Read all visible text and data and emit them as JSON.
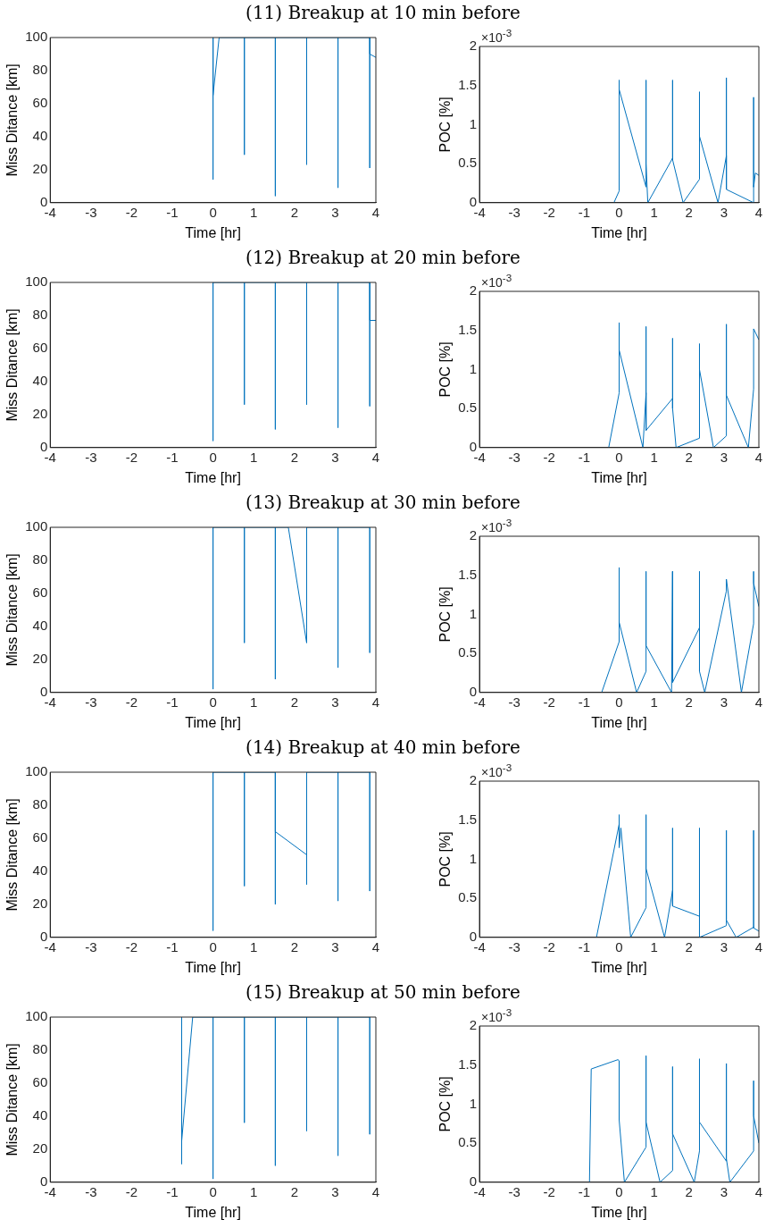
{
  "chart_data": [
    {
      "type": "line",
      "title": "(11) Breakup at 10 min before",
      "xlabel": "Time [hr]",
      "ylabel": "Miss Ditance [km]",
      "xlim": [
        -4,
        4
      ],
      "xticks": [
        -4,
        -3,
        -2,
        -1,
        0,
        1,
        2,
        3,
        4
      ],
      "ylim": [
        0,
        100
      ],
      "yticks": [
        0,
        20,
        40,
        60,
        80,
        100
      ],
      "series": [
        {
          "color": "#0072bd",
          "x": [
            0,
            0,
            0,
            0.15,
            0.77,
            0.77,
            0.77,
            1.53,
            1.53,
            1.53,
            2.3,
            2.3,
            2.3,
            3.07,
            3.07,
            3.07,
            3.85,
            3.85,
            3.85,
            4
          ],
          "values": [
            100,
            14,
            65,
            100,
            100,
            29,
            100,
            100,
            4,
            100,
            100,
            23,
            100,
            100,
            9,
            100,
            100,
            21,
            90,
            88
          ]
        }
      ]
    },
    {
      "type": "line",
      "xlabel": "Time [hr]",
      "ylabel": "POC [%]",
      "annotations": [
        "×10$^{-3}$"
      ],
      "xlim": [
        -4,
        4
      ],
      "xticks": [
        -4,
        -3,
        -2,
        -1,
        0,
        1,
        2,
        3,
        4
      ],
      "ylim": [
        0,
        2
      ],
      "yticks": [
        0,
        0.5,
        1,
        1.5,
        2
      ],
      "series": [
        {
          "color": "#0072bd",
          "x": [
            -0.15,
            0,
            0,
            0,
            0.77,
            0.77,
            0.77,
            0.82,
            1.53,
            1.53,
            1.53,
            1.83,
            2.3,
            2.3,
            2.3,
            2.83,
            3.07,
            3.07,
            3.07,
            3.85,
            3.85,
            3.85,
            3.9,
            4
          ],
          "values": [
            0,
            0.15,
            1.57,
            1.45,
            0.2,
            1.57,
            0.5,
            0,
            0.57,
            1.57,
            0.55,
            0,
            0.3,
            1.42,
            0.85,
            0,
            0.6,
            1.6,
            0.17,
            0,
            1.35,
            0.2,
            0.38,
            0.35
          ]
        }
      ]
    },
    {
      "type": "line",
      "title": "(12) Breakup at 20 min before",
      "xlabel": "Time [hr]",
      "ylabel": "Miss Ditance [km]",
      "xlim": [
        -4,
        4
      ],
      "xticks": [
        -4,
        -3,
        -2,
        -1,
        0,
        1,
        2,
        3,
        4
      ],
      "ylim": [
        0,
        100
      ],
      "yticks": [
        0,
        20,
        40,
        60,
        80,
        100
      ],
      "series": [
        {
          "color": "#0072bd",
          "x": [
            0,
            0,
            0,
            0.77,
            0.77,
            0.77,
            1.53,
            1.53,
            1.53,
            2.3,
            2.3,
            2.3,
            3.07,
            3.07,
            3.07,
            3.85,
            3.85,
            3.85,
            4
          ],
          "values": [
            100,
            4,
            100,
            100,
            26,
            100,
            100,
            11,
            100,
            100,
            26,
            100,
            100,
            12,
            100,
            100,
            25,
            77,
            77
          ]
        }
      ]
    },
    {
      "type": "line",
      "xlabel": "Time [hr]",
      "ylabel": "POC [%]",
      "annotations": [
        "×10$^{-3}$"
      ],
      "xlim": [
        -4,
        4
      ],
      "xticks": [
        -4,
        -3,
        -2,
        -1,
        0,
        1,
        2,
        3,
        4
      ],
      "ylim": [
        0,
        2
      ],
      "yticks": [
        0,
        0.5,
        1,
        1.5,
        2
      ],
      "series": [
        {
          "color": "#0072bd",
          "x": [
            -0.3,
            0,
            0,
            0,
            0.68,
            0.77,
            0.77,
            0.77,
            1.53,
            1.53,
            1.53,
            1.63,
            2.3,
            2.3,
            2.3,
            2.7,
            3.07,
            3.07,
            3.07,
            3.7,
            3.85,
            3.85,
            4
          ],
          "values": [
            0,
            0.7,
            1.6,
            1.25,
            0,
            0.7,
            1.55,
            0.22,
            0.63,
            1.4,
            0.5,
            0,
            0.12,
            1.33,
            1.0,
            0,
            0.15,
            1.58,
            0.67,
            0,
            0.75,
            1.52,
            1.38
          ]
        }
      ]
    },
    {
      "type": "line",
      "title": "(13) Breakup at 30 min before",
      "xlabel": "Time [hr]",
      "ylabel": "Miss Ditance [km]",
      "xlim": [
        -4,
        4
      ],
      "xticks": [
        -4,
        -3,
        -2,
        -1,
        0,
        1,
        2,
        3,
        4
      ],
      "ylim": [
        0,
        100
      ],
      "yticks": [
        0,
        20,
        40,
        60,
        80,
        100
      ],
      "series": [
        {
          "color": "#0072bd",
          "x": [
            0,
            0,
            0,
            0.77,
            0.77,
            0.77,
            1.53,
            1.53,
            1.53,
            1.85,
            2.3,
            2.3,
            3.07,
            3.07,
            3.07,
            3.85,
            3.85,
            3.85
          ],
          "values": [
            100,
            2,
            100,
            100,
            30,
            100,
            100,
            8,
            100,
            100,
            30,
            100,
            100,
            15,
            100,
            100,
            24,
            100
          ]
        }
      ]
    },
    {
      "type": "line",
      "xlabel": "Time [hr]",
      "ylabel": "POC [%]",
      "annotations": [
        "×10$^{-3}$"
      ],
      "xlim": [
        -4,
        4
      ],
      "xticks": [
        -4,
        -3,
        -2,
        -1,
        0,
        1,
        2,
        3,
        4
      ],
      "ylim": [
        0,
        2
      ],
      "yticks": [
        0,
        0.5,
        1,
        1.5,
        2
      ],
      "series": [
        {
          "color": "#0072bd",
          "x": [
            -0.5,
            0,
            0,
            0,
            0.5,
            0.77,
            0.77,
            0.77,
            1.5,
            1.53,
            1.53,
            2.3,
            2.3,
            2.3,
            2.45,
            3.07,
            3.07,
            3.5,
            3.85,
            3.85,
            3.85,
            4
          ],
          "values": [
            0,
            0.65,
            1.6,
            0.9,
            0,
            0.27,
            1.55,
            0.6,
            0,
            1.55,
            0.13,
            0.83,
            1.55,
            0.27,
            0,
            1.3,
            1.45,
            0,
            0.88,
            1.55,
            1.4,
            1.1
          ]
        }
      ]
    },
    {
      "type": "line",
      "title": "(14) Breakup at 40 min before",
      "xlabel": "Time [hr]",
      "ylabel": "Miss Ditance [km]",
      "xlim": [
        -4,
        4
      ],
      "xticks": [
        -4,
        -3,
        -2,
        -1,
        0,
        1,
        2,
        3,
        4
      ],
      "ylim": [
        0,
        100
      ],
      "yticks": [
        0,
        20,
        40,
        60,
        80,
        100
      ],
      "series": [
        {
          "color": "#0072bd",
          "x": [
            0,
            0,
            0,
            0.77,
            0.77,
            0.77,
            1.53,
            1.53,
            1.53,
            2.3,
            2.3,
            2.3,
            3.07,
            3.07,
            3.07,
            3.85,
            3.85,
            3.85
          ],
          "values": [
            100,
            4,
            100,
            100,
            31,
            100,
            100,
            20,
            64,
            50,
            32,
            100,
            100,
            22,
            100,
            100,
            28,
            100
          ]
        }
      ]
    },
    {
      "type": "line",
      "xlabel": "Time [hr]",
      "ylabel": "POC [%]",
      "annotations": [
        "×10$^{-3}$"
      ],
      "xlim": [
        -4,
        4
      ],
      "xticks": [
        -4,
        -3,
        -2,
        -1,
        0,
        1,
        2,
        3,
        4
      ],
      "ylim": [
        0,
        2
      ],
      "yticks": [
        0,
        0.5,
        1,
        1.5,
        2
      ],
      "series": [
        {
          "color": "#0072bd",
          "x": [
            -0.65,
            0,
            0,
            0,
            0.05,
            0.33,
            0.77,
            0.77,
            0.77,
            1.3,
            1.53,
            1.53,
            1.53,
            2.3,
            2.3,
            2.3,
            3.07,
            3.07,
            3.07,
            3.35,
            3.85,
            3.85,
            3.85,
            4
          ],
          "values": [
            0,
            1.45,
            1.57,
            1.15,
            1.4,
            0,
            0.38,
            1.57,
            0.88,
            0,
            0.6,
            1.4,
            0.4,
            0.27,
            1.4,
            0,
            0.15,
            1.37,
            0.22,
            0,
            0.13,
            1.37,
            0.12,
            0.08
          ]
        }
      ]
    },
    {
      "type": "line",
      "title": "(15) Breakup at 50 min before",
      "xlabel": "Time [hr]",
      "ylabel": "Miss Ditance [km]",
      "xlim": [
        -4,
        4
      ],
      "xticks": [
        -4,
        -3,
        -2,
        -1,
        0,
        1,
        2,
        3,
        4
      ],
      "ylim": [
        0,
        100
      ],
      "yticks": [
        0,
        20,
        40,
        60,
        80,
        100
      ],
      "series": [
        {
          "color": "#0072bd",
          "x": [
            -0.77,
            -0.77,
            -0.77,
            -0.5,
            0,
            0,
            0,
            0.77,
            0.77,
            0.77,
            1.53,
            1.53,
            1.53,
            2.3,
            2.3,
            2.3,
            3.07,
            3.07,
            3.07,
            3.85,
            3.85,
            3.85
          ],
          "values": [
            100,
            11,
            25,
            100,
            100,
            2,
            100,
            100,
            36,
            100,
            100,
            10,
            100,
            100,
            31,
            100,
            100,
            16,
            100,
            100,
            29,
            100
          ]
        }
      ]
    },
    {
      "type": "line",
      "xlabel": "Time [hr]",
      "ylabel": "POC [%]",
      "annotations": [
        "×10$^{-3}$"
      ],
      "xlim": [
        -4,
        4
      ],
      "xticks": [
        -4,
        -3,
        -2,
        -1,
        0,
        1,
        2,
        3,
        4
      ],
      "ylim": [
        0,
        2
      ],
      "yticks": [
        0,
        0.5,
        1,
        1.5,
        2
      ],
      "series": [
        {
          "color": "#0072bd",
          "x": [
            -0.85,
            -0.8,
            -0.03,
            0,
            0,
            0.15,
            0.77,
            0.77,
            0.77,
            1.17,
            1.53,
            1.53,
            1.53,
            2.15,
            2.3,
            2.3,
            2.3,
            3.07,
            3.07,
            3.07,
            3.17,
            3.85,
            3.85,
            3.85,
            4
          ],
          "values": [
            0,
            1.45,
            1.57,
            1.55,
            0.8,
            0,
            0.45,
            1.62,
            0.77,
            0,
            0.15,
            1.48,
            0.62,
            0,
            0.4,
            1.58,
            0.77,
            0.27,
            1.52,
            0.3,
            0,
            0.4,
            1.3,
            0.85,
            0.5
          ]
        }
      ]
    }
  ]
}
